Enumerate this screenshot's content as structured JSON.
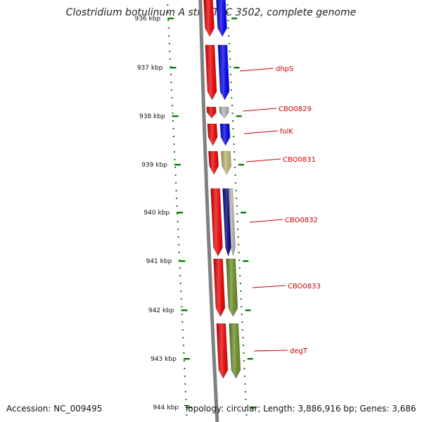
{
  "title": "Clostridium botulinum A str. ATCC 3502, complete genome",
  "footer": {
    "accession": "Accession: NC_009495",
    "summary": "Topology: circular; Length: 3,886,916 bp; Genes: 3,686"
  },
  "ticks": [
    "936 kbp",
    "937 kbp",
    "938 kbp",
    "939 kbp",
    "940 kbp",
    "941 kbp",
    "942 kbp",
    "943 kbp",
    "944 kbp"
  ],
  "colors": {
    "red": "#ee0000",
    "blue": "#0000ee",
    "navy": "#000080",
    "grey": "#b4b4b4",
    "khaki": "#bdb76b",
    "olive": "#6b8e23",
    "axis": "#808080",
    "tick": "#008000",
    "label": "#cc0000"
  },
  "genes": [
    {
      "label": "dhpS",
      "cog_color": "blue"
    },
    {
      "label": "CBO0829",
      "cog_color": "grey"
    },
    {
      "label": "folK",
      "cog_color": "blue"
    },
    {
      "label": "CBO0831",
      "cog_color": "khaki"
    },
    {
      "label": "CBO0832",
      "cog_color": "navy"
    },
    {
      "label": "CBO0833",
      "cog_color": "olive"
    },
    {
      "label": "degT",
      "cog_color": "olive"
    }
  ]
}
